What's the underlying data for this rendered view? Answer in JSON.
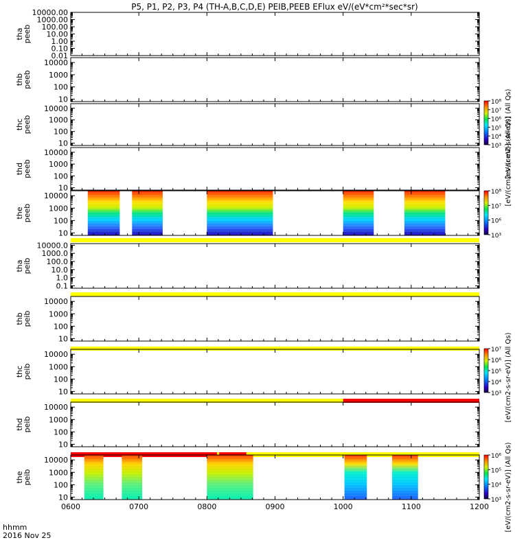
{
  "title": "P5, P1, P2, P3, P4 (TH-A,B,C,D,E) PEIB,PEEB EFlux eV/(eV*cm²*sec*sr)",
  "footer": {
    "line1": "hhmm",
    "line2": "2016 Nov 25"
  },
  "chart_data": [
    {
      "type": "heatmap",
      "x_ticks": [
        "0600",
        "0700",
        "0800",
        "0900",
        "1000",
        "1100",
        "1200"
      ],
      "x_range_hours": [
        6,
        12
      ],
      "panels": [
        {
          "id": "tha_peeb",
          "label": [
            "tha",
            "peeb"
          ],
          "y_ticks": [
            "10000.00",
            "1000.00",
            "100.00",
            "10.00",
            "1.00",
            "0.10",
            "0.01"
          ],
          "y_log": [
            -2,
            4
          ],
          "data_intervals": [],
          "colorbar": null,
          "status_bar": null
        },
        {
          "id": "thb_peeb",
          "label": [
            "thb",
            "peeb"
          ],
          "y_ticks": [
            "10000",
            "1000",
            "100",
            "10"
          ],
          "y_log": [
            0.8,
            4.4
          ],
          "data_intervals": [],
          "colorbar": null,
          "status_bar": null
        },
        {
          "id": "thc_peeb",
          "label": [
            "thc",
            "peeb"
          ],
          "y_ticks": [
            "10000",
            "1000",
            "100",
            "10"
          ],
          "y_log": [
            0.8,
            4.4
          ],
          "data_intervals": [],
          "colorbar": {
            "ticks": [
              "10³",
              "10⁴",
              "10⁵",
              "10⁶",
              "10⁷",
              "10⁸"
            ],
            "unit": "[eV/(cm2-s-sr-eV)] (All Qs)"
          },
          "status_bar": null
        },
        {
          "id": "thd_peeb",
          "label": [
            "thd",
            "peeb"
          ],
          "y_ticks": [
            "10000",
            "1000",
            "100",
            "10"
          ],
          "y_log": [
            0.8,
            4.4
          ],
          "data_intervals": [],
          "colorbar": null,
          "status_bar": null
        },
        {
          "id": "the_peeb",
          "label": [
            "the",
            "peeb"
          ],
          "y_ticks": [
            "10000",
            "1000",
            "100",
            "10"
          ],
          "y_log": [
            0.8,
            4.4
          ],
          "data_intervals": [
            [
              6.25,
              6.72
            ],
            [
              6.9,
              7.35
            ],
            [
              8.0,
              8.97
            ],
            [
              10.0,
              10.45
            ],
            [
              10.9,
              11.5
            ]
          ],
          "colorbar": {
            "ticks": [
              "10³",
              "10⁶",
              "10⁷",
              "10⁸"
            ],
            "unit": "[eV/(cm2-s-sr-eV)] (All Qs)"
          },
          "status_bar": [
            {
              "from": 6.0,
              "to": 12.0,
              "color": "#ffff00"
            }
          ]
        },
        {
          "id": "tha_peib",
          "label": [
            "tha",
            "peib"
          ],
          "y_ticks": [
            "10000.0",
            "1000.0",
            "100.0",
            "10.0",
            "1.0",
            "0.1"
          ],
          "y_log": [
            -1.3,
            4.2
          ],
          "data_intervals": [],
          "colorbar": null,
          "status_bar": [
            {
              "from": 6.0,
              "to": 12.0,
              "color": "#ffff00"
            }
          ]
        },
        {
          "id": "thb_peib",
          "label": [
            "thb",
            "peib"
          ],
          "y_ticks": [
            "10000",
            "1000",
            "100",
            "10"
          ],
          "y_log": [
            0.8,
            4.4
          ],
          "data_intervals": [],
          "colorbar": null,
          "status_bar": [
            {
              "from": 6.0,
              "to": 12.0,
              "color": "#ffff00"
            }
          ]
        },
        {
          "id": "thc_peib",
          "label": [
            "thc",
            "peib"
          ],
          "y_ticks": [
            "10000",
            "1000",
            "100",
            "10"
          ],
          "y_log": [
            0.8,
            4.4
          ],
          "data_intervals": [],
          "colorbar": {
            "ticks": [
              "10³",
              "10⁴",
              "10⁵",
              "10⁶",
              "10⁷"
            ],
            "unit": "[eV/(cm2-s-sr-eV)] (All Qs)"
          },
          "status_bar": [
            {
              "from": 6.0,
              "to": 10.0,
              "color": "#ffff00"
            },
            {
              "from": 10.0,
              "to": 12.0,
              "color": "#ff0000"
            }
          ]
        },
        {
          "id": "thd_peib",
          "label": [
            "thd",
            "peib"
          ],
          "y_ticks": [
            "10000",
            "1000",
            "100",
            "10"
          ],
          "y_log": [
            0.8,
            4.4
          ],
          "data_intervals": [],
          "colorbar": null,
          "status_bar": [
            {
              "from": 6.0,
              "to": 8.15,
              "color": "#ff0000"
            },
            {
              "from": 8.15,
              "to": 8.18,
              "color": "#ffff00"
            },
            {
              "from": 8.18,
              "to": 8.58,
              "color": "#ff0000"
            },
            {
              "from": 8.58,
              "to": 12.0,
              "color": "#ffff00"
            }
          ]
        },
        {
          "id": "the_peib",
          "label": [
            "the",
            "peib"
          ],
          "y_ticks": [
            "10000",
            "1000",
            "100",
            "10"
          ],
          "y_log": [
            0.8,
            4.4
          ],
          "data_intervals": [
            [
              6.2,
              6.48
            ],
            [
              6.75,
              7.05
            ],
            [
              8.0,
              8.68
            ],
            [
              10.02,
              10.35
            ],
            [
              10.72,
              11.1
            ]
          ],
          "colorbar": {
            "ticks": [
              "10³",
              "10⁴",
              "10⁵",
              "10⁶"
            ],
            "unit": "[eV/(cm2-s-sr-eV)] (All Qs)"
          },
          "status_bar": null
        }
      ]
    }
  ]
}
